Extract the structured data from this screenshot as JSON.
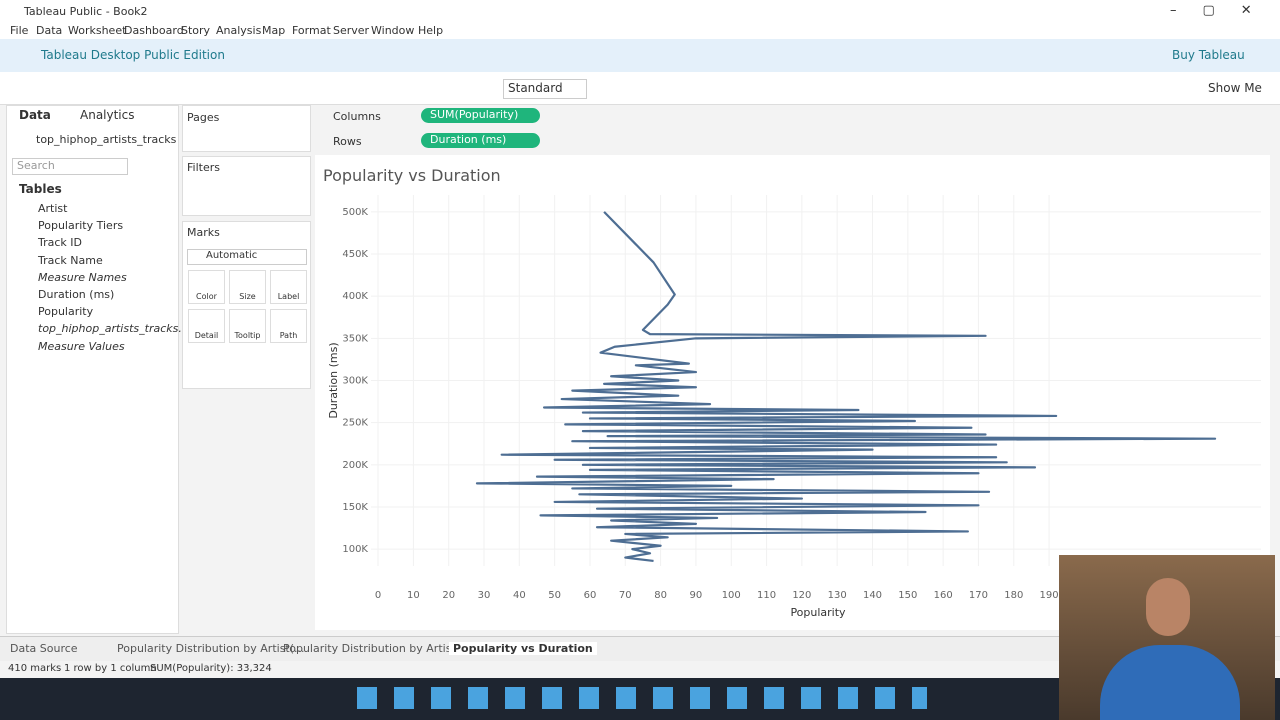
{
  "window": {
    "title": "Tableau Public - Book2"
  },
  "menu": [
    "File",
    "Data",
    "Worksheet",
    "Dashboard",
    "Story",
    "Analysis",
    "Map",
    "Format",
    "Server",
    "Window",
    "Help"
  ],
  "banner": {
    "title": "Tableau Desktop Public Edition",
    "button": "Buy Tableau"
  },
  "toolbar": {
    "fit": "Standard",
    "show_me": "Show Me"
  },
  "data_pane": {
    "tabs": [
      "Data",
      "Analytics"
    ],
    "source": "top_hiphop_artists_tracks",
    "search": "Search",
    "tables_heading": "Tables",
    "fields": [
      "Artist",
      "Popularity Tiers",
      "Track ID",
      "Track Name",
      "Measure Names",
      "Duration (ms)",
      "Popularity",
      "top_hiphop_artists_tracks...",
      "Measure Values"
    ]
  },
  "cards": {
    "pages": "Pages",
    "filters": "Filters",
    "marks": "Marks",
    "mark_type": "Automatic",
    "mark_buttons": [
      "Color",
      "Size",
      "Label",
      "Detail",
      "Tooltip",
      "Path"
    ]
  },
  "shelves": {
    "columns": {
      "label": "Columns",
      "pill": "SUM(Popularity)"
    },
    "rows": {
      "label": "Rows",
      "pill": "Duration (ms)"
    }
  },
  "sheet_tabs": [
    "Data Source",
    "Popularity Distribution by Artist(...",
    "Popularity Distribution by Artist(...",
    "Popularity vs Duration"
  ],
  "status": [
    "410 marks",
    "1 row by 1 column",
    "SUM(Popularity): 33,324"
  ],
  "chart_data": {
    "type": "line",
    "title": "Popularity vs Duration",
    "xlabel": "Popularity",
    "ylabel": "Duration (ms)",
    "xlim": [
      -2,
      250
    ],
    "xticks": [
      0,
      10,
      20,
      30,
      40,
      50,
      60,
      70,
      80,
      90,
      100,
      110,
      120,
      130,
      140,
      150,
      160,
      170,
      180,
      190
    ],
    "ylim": [
      80000,
      520000
    ],
    "yticks": [
      {
        "value": 100000,
        "label": "100K"
      },
      {
        "value": 150000,
        "label": "150K"
      },
      {
        "value": 200000,
        "label": "200K"
      },
      {
        "value": 250000,
        "label": "250K"
      },
      {
        "value": 300000,
        "label": "300K"
      },
      {
        "value": 350000,
        "label": "350K"
      },
      {
        "value": 400000,
        "label": "400K"
      },
      {
        "value": 450000,
        "label": "450K"
      },
      {
        "value": 500000,
        "label": "500K"
      }
    ],
    "grid": true,
    "x": [
      64,
      78,
      84,
      82,
      75,
      77,
      172,
      90,
      67,
      63,
      88,
      73,
      90,
      66,
      85,
      64,
      90,
      55,
      85,
      52,
      94,
      47,
      136,
      58,
      192,
      60,
      152,
      53,
      168,
      58,
      172,
      65,
      237,
      55,
      175,
      60,
      140,
      35,
      175,
      50,
      178,
      58,
      186,
      60,
      170,
      45,
      112,
      28,
      100,
      55,
      173,
      57,
      120,
      50,
      170,
      62,
      155,
      46,
      96,
      66,
      90,
      62,
      167,
      70,
      82,
      66,
      80,
      72,
      77,
      70,
      78
    ],
    "series": [
      {
        "name": "Duration (ms)",
        "color": "#4e6e93",
        "values": [
          500000,
          440000,
          402000,
          390000,
          360000,
          355000,
          353000,
          350000,
          340000,
          333000,
          320000,
          318000,
          310000,
          305000,
          300000,
          296000,
          292000,
          288000,
          282000,
          278000,
          272000,
          268000,
          265000,
          262000,
          258000,
          255000,
          252000,
          248000,
          244000,
          240000,
          236000,
          234000,
          231000,
          228000,
          224000,
          220000,
          218000,
          212000,
          209000,
          206000,
          203000,
          200000,
          197000,
          194000,
          190000,
          186000,
          183000,
          178000,
          175000,
          172000,
          168000,
          165000,
          160000,
          156000,
          152000,
          148000,
          144000,
          140000,
          137000,
          134000,
          130000,
          126000,
          121000,
          118000,
          114000,
          110000,
          104000,
          100000,
          95000,
          90000,
          86000
        ]
      }
    ]
  }
}
